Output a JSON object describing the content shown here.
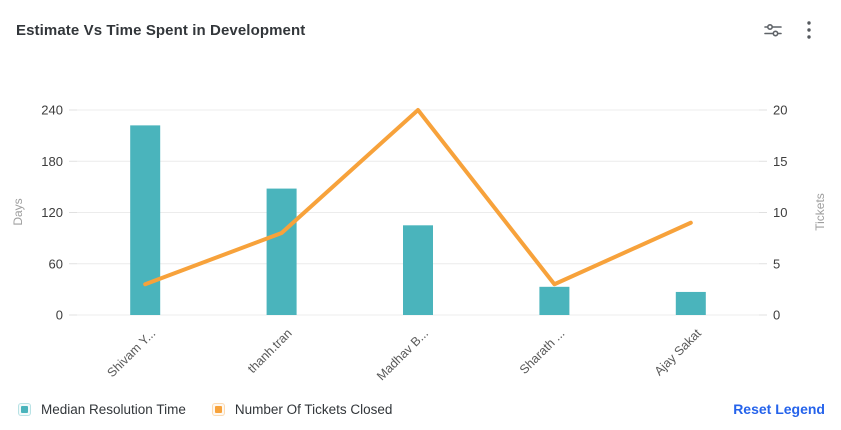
{
  "header": {
    "title": "Estimate Vs Time Spent in Development"
  },
  "toolbar": {
    "icons": [
      {
        "name": "sliders-icon",
        "meaning": "chart display settings"
      },
      {
        "name": "kebab-menu-icon",
        "meaning": "more options"
      }
    ]
  },
  "chart_data": {
    "type": "combo-bar-line",
    "title": "Estimate Vs Time Spent in Development",
    "categories": [
      "Shivam Y...",
      "thanh.tran",
      "Madhav B...",
      "Sharath ...",
      "Ajay Sakat"
    ],
    "series": [
      {
        "name": "Median Resolution Time",
        "type": "bar",
        "axis": "left",
        "color": "#4AB4BC",
        "values": [
          222,
          148,
          105,
          33,
          27
        ]
      },
      {
        "name": "Number Of Tickets Closed",
        "type": "line",
        "axis": "right",
        "color": "#F7A23B",
        "values": [
          3,
          8,
          20,
          3,
          9
        ]
      }
    ],
    "y_left": {
      "label": "Days",
      "min": 0,
      "max": 240,
      "ticks": [
        0,
        60,
        120,
        180,
        240
      ]
    },
    "y_right": {
      "label": "Tickets",
      "min": 0,
      "max": 20,
      "ticks": [
        0,
        5,
        10,
        15,
        20
      ]
    },
    "grid": true,
    "legend_position": "bottom",
    "colors": {
      "grid_line": "#ececec",
      "tick_mark": "#e0e0e0",
      "tick_label": "#3d3d3d",
      "axis_name": "#9e9e9e",
      "category_label": "#595959"
    }
  },
  "legend": {
    "items": [
      {
        "label": "Median Resolution Time",
        "color": "#4AB4BC"
      },
      {
        "label": "Number Of Tickets Closed",
        "color": "#F7A23B"
      }
    ],
    "reset_label": "Reset Legend",
    "reset_color": "#2563EB"
  }
}
